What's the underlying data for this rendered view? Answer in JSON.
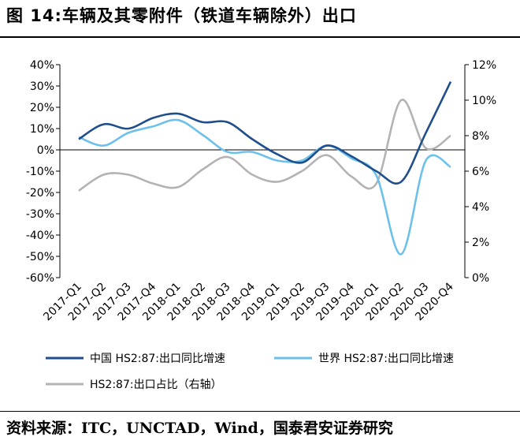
{
  "title": "图 14:车辆及其零附件（铁道车辆除外）出口",
  "source": "资料来源：ITC，UNCTAD，Wind，国泰君安证券研究",
  "colors": {
    "china": "#1f4e8c",
    "world": "#6cc0ea",
    "share": "#b3b3b3"
  },
  "chart_data": {
    "type": "line",
    "categories": [
      "2017-Q1",
      "2017-Q2",
      "2017-Q3",
      "2017-Q4",
      "2018-Q1",
      "2018-Q2",
      "2018-Q3",
      "2018-Q4",
      "2019-Q1",
      "2019-Q2",
      "2019-Q3",
      "2019-Q4",
      "2020-Q1",
      "2020-Q2",
      "2020-Q3",
      "2020-Q4"
    ],
    "y_left": {
      "ticks": [
        "40%",
        "30%",
        "20%",
        "10%",
        "0%",
        "-10%",
        "-20%",
        "-30%",
        "-40%",
        "-50%",
        "-60%"
      ],
      "ylim": [
        -60,
        40
      ]
    },
    "y_right": {
      "ticks": [
        "12%",
        "10%",
        "8%",
        "6%",
        "4%",
        "2%",
        "0%"
      ],
      "ylim": [
        0,
        12
      ]
    },
    "grid": false,
    "legend_position": "bottom",
    "series": [
      {
        "name": "中国 HS2:87:出口同比增速",
        "axis": "left",
        "values": [
          5,
          12,
          10,
          15,
          17,
          13,
          13,
          5,
          -2,
          -6,
          2,
          -3,
          -10,
          -15,
          8,
          32
        ]
      },
      {
        "name": "世界 HS2:87:出口同比增速",
        "axis": "left",
        "values": [
          6,
          2,
          8,
          11,
          14,
          7,
          -1,
          -1,
          -5,
          -5,
          2,
          -4,
          -12,
          -49,
          -5,
          -8
        ]
      },
      {
        "name": "HS2:87:出口占比（右轴）",
        "axis": "right",
        "values": [
          4.9,
          5.8,
          5.8,
          5.3,
          5.1,
          6.1,
          6.8,
          5.8,
          5.4,
          6.0,
          6.9,
          5.7,
          5.3,
          10.0,
          7.3,
          8.0
        ]
      }
    ]
  }
}
